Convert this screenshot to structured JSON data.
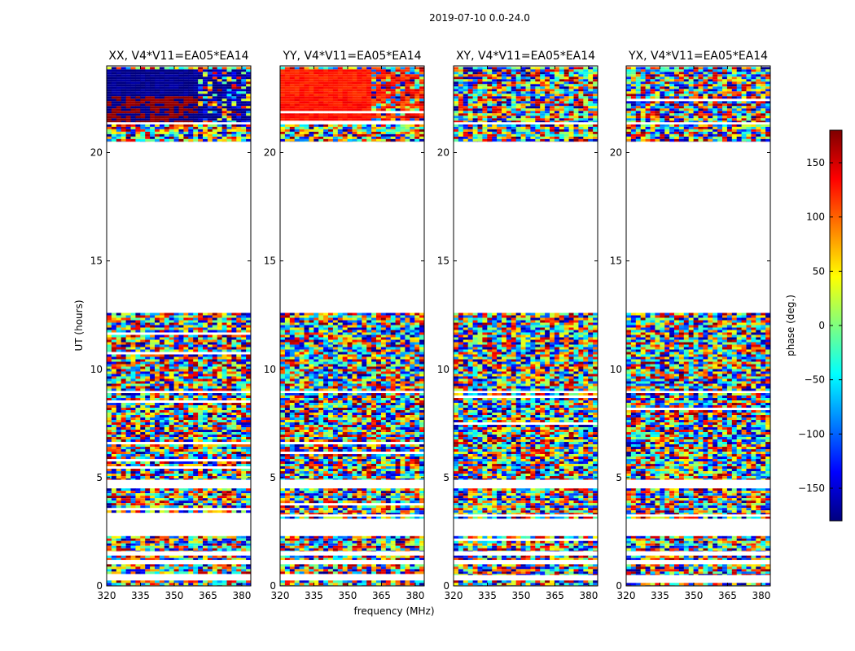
{
  "figure": {
    "suptitle": "2019-07-10 0.0-24.0",
    "xlabel": "frequency (MHz)",
    "ylabel": "UT (hours)"
  },
  "chart_data": {
    "type": "heatmap",
    "x": {
      "label": "frequency (MHz)",
      "range": [
        320,
        384
      ],
      "ticks": [
        320,
        335,
        350,
        365,
        380
      ]
    },
    "y": {
      "label": "UT (hours)",
      "range": [
        0,
        24
      ],
      "ticks": [
        0,
        5,
        10,
        15,
        20
      ]
    },
    "panels": [
      {
        "title": "XX, V4*V11=EA05*EA14",
        "coherent_band": {
          "ut": [
            21.4,
            23.9
          ],
          "phase": -175,
          "transition_freq": 361,
          "split_ut": 22.6,
          "phase_lower": 178
        }
      },
      {
        "title": "YY, V4*V11=EA05*EA14",
        "coherent_band": {
          "ut": [
            21.4,
            23.9
          ],
          "phase": 125,
          "transition_freq": 360,
          "split_ut": 22.6,
          "phase_lower": 130
        }
      },
      {
        "title": "XY, V4*V11=EA05*EA14",
        "coherent_band": null
      },
      {
        "title": "YX, V4*V11=EA05*EA14",
        "coherent_band": null
      }
    ],
    "data_ut_blocks": [
      [
        0.0,
        0.25
      ],
      [
        0.5,
        1.0
      ],
      [
        1.2,
        1.4
      ],
      [
        1.6,
        2.3
      ],
      [
        3.1,
        3.2
      ],
      [
        3.3,
        4.5
      ],
      [
        4.9,
        8.9
      ],
      [
        9.0,
        12.6
      ],
      [
        20.5,
        21.3
      ],
      [
        21.4,
        23.95
      ]
    ],
    "colorbar": {
      "label": "phase (deg.)",
      "range": [
        -180,
        180
      ],
      "ticks": [
        -150,
        -100,
        -50,
        0,
        50,
        100,
        150
      ],
      "tick_labels": [
        "−150",
        "−100",
        "−50",
        "0",
        "50",
        "100",
        "150"
      ],
      "colormap": "jet",
      "colors": [
        "#00007f",
        "#0000ff",
        "#007fff",
        "#00ffff",
        "#7fff7f",
        "#ffff00",
        "#ff7f00",
        "#ff0000",
        "#7f0000"
      ]
    }
  }
}
